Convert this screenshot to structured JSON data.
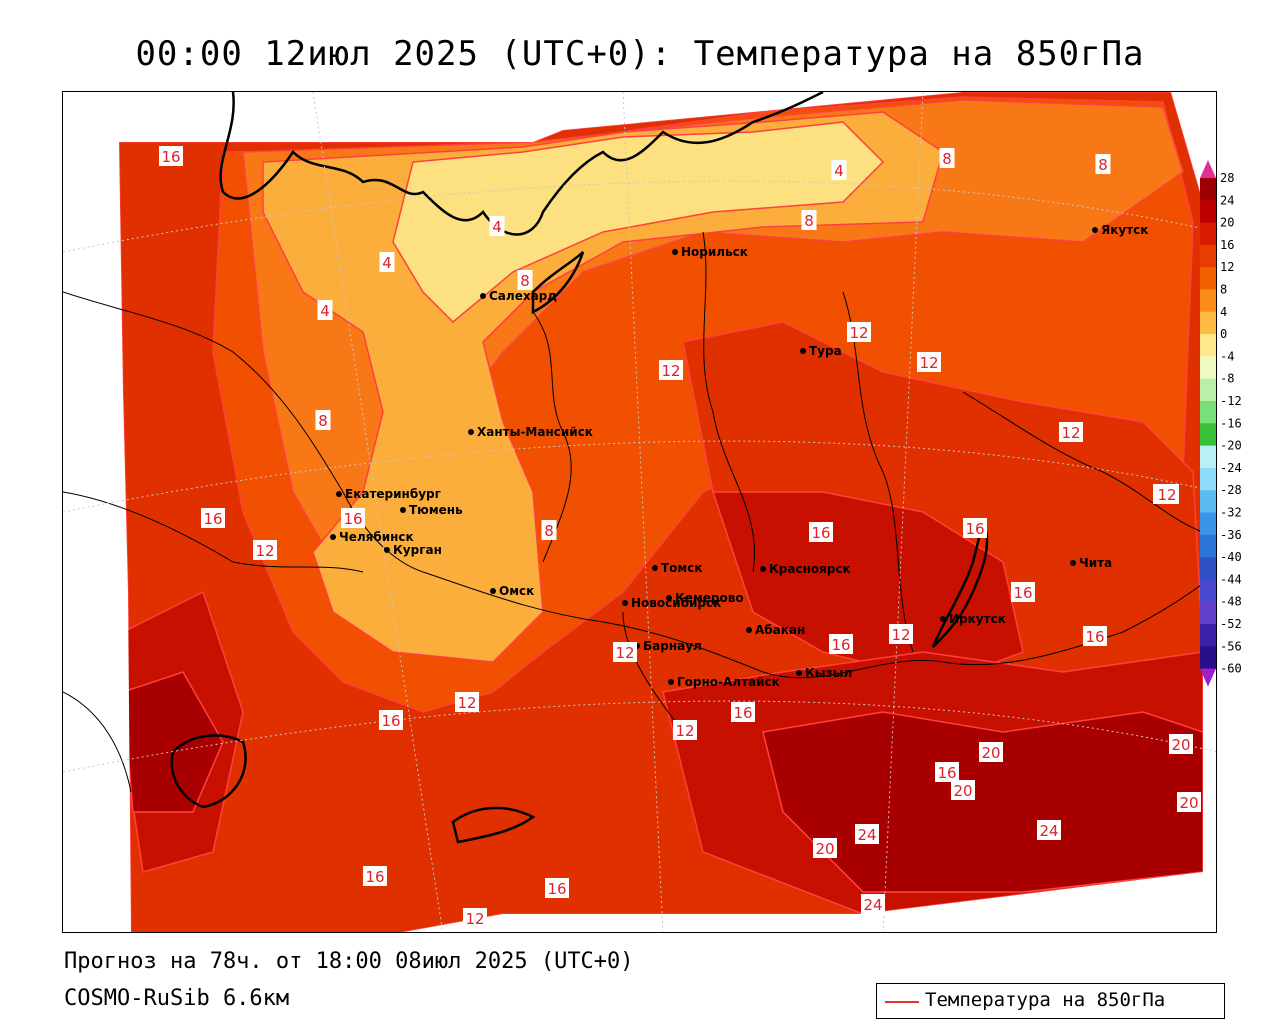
{
  "title": "00:00 12июл 2025 (UTC+0): Температура на 850гПа",
  "footer": {
    "forecast": "Прогноз на 78ч. от 18:00 08июл 2025 (UTC+0)",
    "model": "COSMO-RuSib 6.6км"
  },
  "legend": {
    "label": "Температура на 850гПа",
    "line_color": "#e33333"
  },
  "colorbar": {
    "levels": [
      "28",
      "24",
      "20",
      "16",
      "12",
      "8",
      "4",
      "0",
      "-4",
      "-8",
      "-12",
      "-16",
      "-20",
      "-24",
      "-28",
      "-32",
      "-36",
      "-40",
      "-44",
      "-48",
      "-52",
      "-56",
      "-60"
    ],
    "colors": [
      "#9c0000",
      "#bf0000",
      "#d81c00",
      "#e83c00",
      "#f36000",
      "#fb8c1a",
      "#fdbd45",
      "#fde88c",
      "#eefac0",
      "#b8f0a8",
      "#78e078",
      "#38c038",
      "#b8f0f8",
      "#8cdcf8",
      "#5cbcf0",
      "#3c94e8",
      "#2c74d8",
      "#3050c8",
      "#4848d0",
      "#6040c8",
      "#3c20a8",
      "#28108c"
    ],
    "top_cap_color": "#e0309c",
    "bottom_cap_color": "#a020c8"
  },
  "cities": [
    {
      "name": "Норильск"
    },
    {
      "name": "Якутск"
    },
    {
      "name": "Салехард"
    },
    {
      "name": "Тура"
    },
    {
      "name": "Ханты-Мансийск"
    },
    {
      "name": "Екатеринбург"
    },
    {
      "name": "Тюмень"
    },
    {
      "name": "Челябинск"
    },
    {
      "name": "Курган"
    },
    {
      "name": "Омск"
    },
    {
      "name": "Томск"
    },
    {
      "name": "Кемерово"
    },
    {
      "name": "Новосибирск"
    },
    {
      "name": "Красноярск"
    },
    {
      "name": "Абакан"
    },
    {
      "name": "Барнаул"
    },
    {
      "name": "Горно-Алтайск"
    },
    {
      "name": "Кызыл"
    },
    {
      "name": "Иркутск"
    },
    {
      "name": "Чита"
    }
  ],
  "isotherm_labels": [
    "16",
    "8",
    "8",
    "4",
    "4",
    "4",
    "4",
    "8",
    "8",
    "12",
    "12",
    "12",
    "12",
    "8",
    "16",
    "12",
    "16",
    "16",
    "16",
    "12",
    "16",
    "16",
    "8",
    "16",
    "12",
    "12",
    "16",
    "20",
    "20",
    "20",
    "16",
    "24",
    "20",
    "24",
    "20",
    "24",
    "16",
    "16",
    "12",
    "12",
    "16",
    "12",
    "12"
  ],
  "fill_colors": {
    "c24": "#a80000",
    "c20": "#c81000",
    "c16": "#e03000",
    "c12": "#f05000",
    "c8": "#f87818",
    "c4": "#fcae3c",
    "c0": "#fde080",
    "sea": "#ffffff"
  }
}
